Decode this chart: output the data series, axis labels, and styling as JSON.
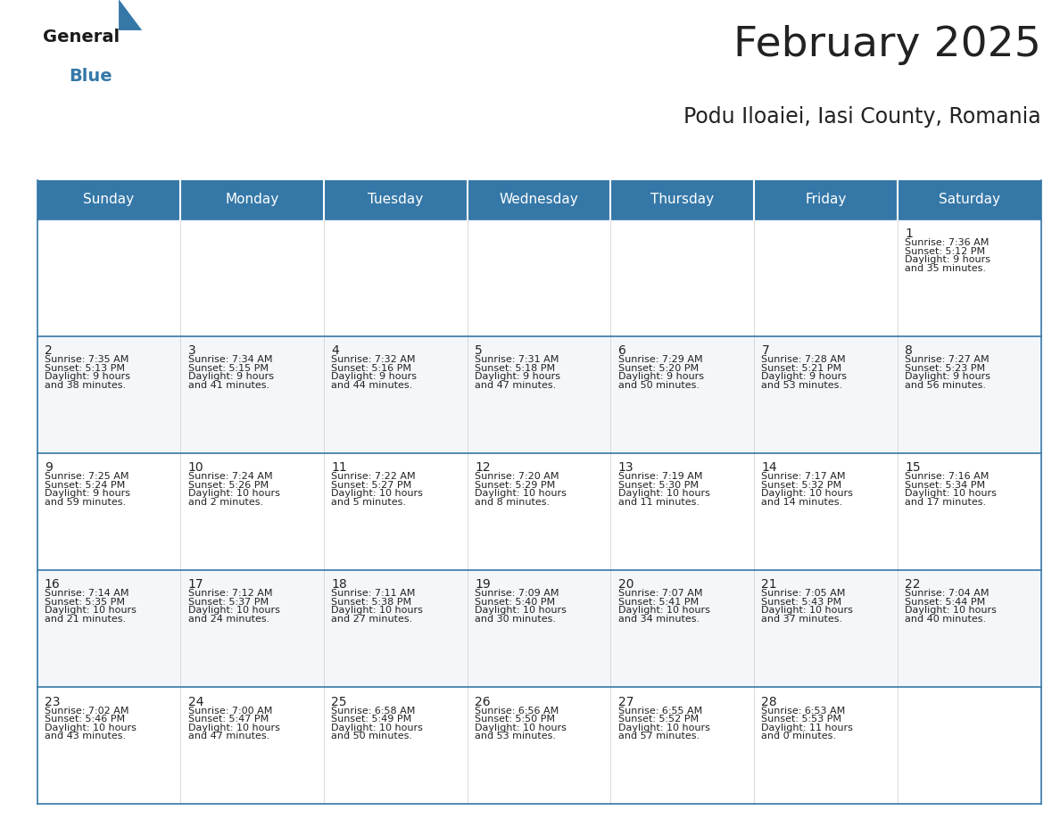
{
  "title": "February 2025",
  "subtitle": "Podu Iloaiei, Iasi County, Romania",
  "header_color": "#3578a8",
  "header_text_color": "#ffffff",
  "cell_bg_color": "#ffffff",
  "border_color": "#3578a8",
  "row_sep_color": "#3578a8",
  "days_of_week": [
    "Sunday",
    "Monday",
    "Tuesday",
    "Wednesday",
    "Thursday",
    "Friday",
    "Saturday"
  ],
  "calendar": [
    [
      null,
      null,
      null,
      null,
      null,
      null,
      1
    ],
    [
      2,
      3,
      4,
      5,
      6,
      7,
      8
    ],
    [
      9,
      10,
      11,
      12,
      13,
      14,
      15
    ],
    [
      16,
      17,
      18,
      19,
      20,
      21,
      22
    ],
    [
      23,
      24,
      25,
      26,
      27,
      28,
      null
    ]
  ],
  "day_data": {
    "1": {
      "sunrise": "7:36 AM",
      "sunset": "5:12 PM",
      "daylight_hours": 9,
      "daylight_minutes": 35
    },
    "2": {
      "sunrise": "7:35 AM",
      "sunset": "5:13 PM",
      "daylight_hours": 9,
      "daylight_minutes": 38
    },
    "3": {
      "sunrise": "7:34 AM",
      "sunset": "5:15 PM",
      "daylight_hours": 9,
      "daylight_minutes": 41
    },
    "4": {
      "sunrise": "7:32 AM",
      "sunset": "5:16 PM",
      "daylight_hours": 9,
      "daylight_minutes": 44
    },
    "5": {
      "sunrise": "7:31 AM",
      "sunset": "5:18 PM",
      "daylight_hours": 9,
      "daylight_minutes": 47
    },
    "6": {
      "sunrise": "7:29 AM",
      "sunset": "5:20 PM",
      "daylight_hours": 9,
      "daylight_minutes": 50
    },
    "7": {
      "sunrise": "7:28 AM",
      "sunset": "5:21 PM",
      "daylight_hours": 9,
      "daylight_minutes": 53
    },
    "8": {
      "sunrise": "7:27 AM",
      "sunset": "5:23 PM",
      "daylight_hours": 9,
      "daylight_minutes": 56
    },
    "9": {
      "sunrise": "7:25 AM",
      "sunset": "5:24 PM",
      "daylight_hours": 9,
      "daylight_minutes": 59
    },
    "10": {
      "sunrise": "7:24 AM",
      "sunset": "5:26 PM",
      "daylight_hours": 10,
      "daylight_minutes": 2
    },
    "11": {
      "sunrise": "7:22 AM",
      "sunset": "5:27 PM",
      "daylight_hours": 10,
      "daylight_minutes": 5
    },
    "12": {
      "sunrise": "7:20 AM",
      "sunset": "5:29 PM",
      "daylight_hours": 10,
      "daylight_minutes": 8
    },
    "13": {
      "sunrise": "7:19 AM",
      "sunset": "5:30 PM",
      "daylight_hours": 10,
      "daylight_minutes": 11
    },
    "14": {
      "sunrise": "7:17 AM",
      "sunset": "5:32 PM",
      "daylight_hours": 10,
      "daylight_minutes": 14
    },
    "15": {
      "sunrise": "7:16 AM",
      "sunset": "5:34 PM",
      "daylight_hours": 10,
      "daylight_minutes": 17
    },
    "16": {
      "sunrise": "7:14 AM",
      "sunset": "5:35 PM",
      "daylight_hours": 10,
      "daylight_minutes": 21
    },
    "17": {
      "sunrise": "7:12 AM",
      "sunset": "5:37 PM",
      "daylight_hours": 10,
      "daylight_minutes": 24
    },
    "18": {
      "sunrise": "7:11 AM",
      "sunset": "5:38 PM",
      "daylight_hours": 10,
      "daylight_minutes": 27
    },
    "19": {
      "sunrise": "7:09 AM",
      "sunset": "5:40 PM",
      "daylight_hours": 10,
      "daylight_minutes": 30
    },
    "20": {
      "sunrise": "7:07 AM",
      "sunset": "5:41 PM",
      "daylight_hours": 10,
      "daylight_minutes": 34
    },
    "21": {
      "sunrise": "7:05 AM",
      "sunset": "5:43 PM",
      "daylight_hours": 10,
      "daylight_minutes": 37
    },
    "22": {
      "sunrise": "7:04 AM",
      "sunset": "5:44 PM",
      "daylight_hours": 10,
      "daylight_minutes": 40
    },
    "23": {
      "sunrise": "7:02 AM",
      "sunset": "5:46 PM",
      "daylight_hours": 10,
      "daylight_minutes": 43
    },
    "24": {
      "sunrise": "7:00 AM",
      "sunset": "5:47 PM",
      "daylight_hours": 10,
      "daylight_minutes": 47
    },
    "25": {
      "sunrise": "6:58 AM",
      "sunset": "5:49 PM",
      "daylight_hours": 10,
      "daylight_minutes": 50
    },
    "26": {
      "sunrise": "6:56 AM",
      "sunset": "5:50 PM",
      "daylight_hours": 10,
      "daylight_minutes": 53
    },
    "27": {
      "sunrise": "6:55 AM",
      "sunset": "5:52 PM",
      "daylight_hours": 10,
      "daylight_minutes": 57
    },
    "28": {
      "sunrise": "6:53 AM",
      "sunset": "5:53 PM",
      "daylight_hours": 11,
      "daylight_minutes": 0
    }
  },
  "logo_general_color": "#1a1a1a",
  "logo_blue_color": "#3578a8",
  "logo_triangle_color": "#3578a8",
  "text_color": "#222222",
  "day_number_fontsize": 10,
  "cell_text_fontsize": 8,
  "header_fontsize": 11,
  "title_fontsize": 34,
  "subtitle_fontsize": 17
}
